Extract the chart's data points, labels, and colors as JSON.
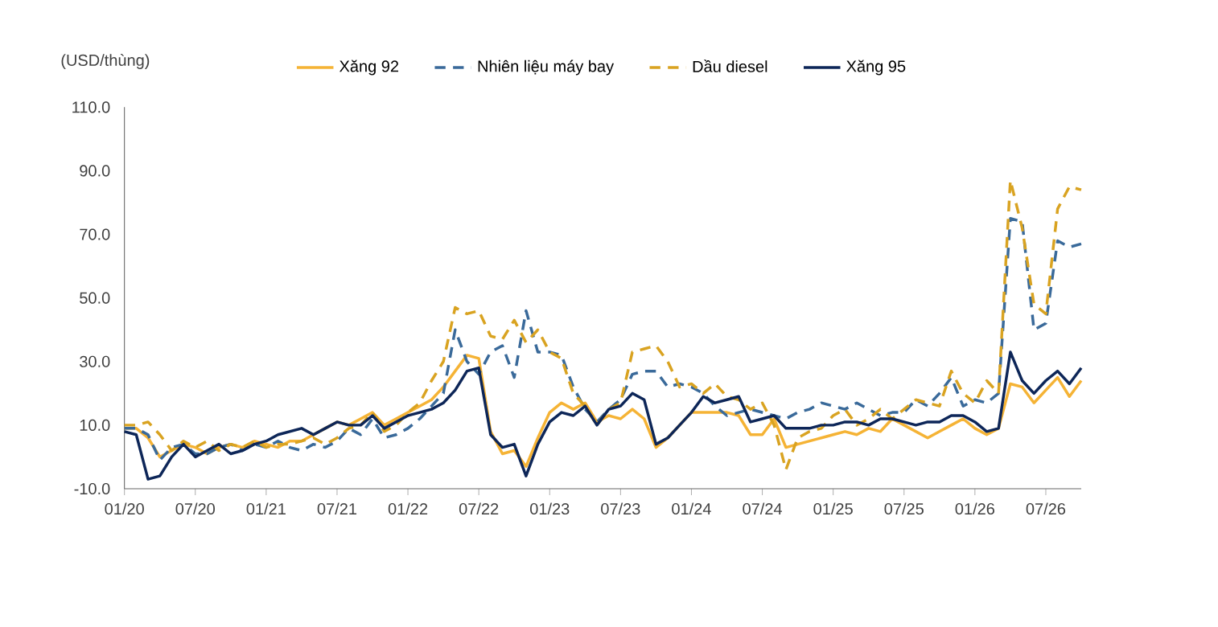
{
  "chart_data": {
    "type": "line",
    "ylabel": "(USD/thùng)",
    "x": [
      "2020-01",
      "2020-02",
      "2020-03",
      "2020-04",
      "2020-05",
      "2020-06",
      "2020-07",
      "2020-08",
      "2020-09",
      "2020-10",
      "2020-11",
      "2020-12",
      "2021-01",
      "2021-02",
      "2021-03",
      "2021-04",
      "2021-05",
      "2021-06",
      "2021-07",
      "2021-08",
      "2021-09",
      "2021-10",
      "2021-11",
      "2021-12",
      "2022-01",
      "2022-02",
      "2022-03",
      "2022-04",
      "2022-05",
      "2022-06",
      "2022-07",
      "2022-08",
      "2022-09",
      "2022-10",
      "2022-11",
      "2022-12",
      "2023-01",
      "2023-02",
      "2023-03",
      "2023-04",
      "2023-05",
      "2023-06",
      "2023-07",
      "2023-08",
      "2023-09",
      "2023-10",
      "2023-11",
      "2023-12",
      "2024-01",
      "2024-02",
      "2024-03",
      "2024-04",
      "2024-05",
      "2024-06",
      "2024-07",
      "2024-08",
      "2024-09",
      "2024-10",
      "2024-11",
      "2024-12",
      "2025-01",
      "2025-02",
      "2025-03",
      "2025-04",
      "2025-05",
      "2025-06",
      "2025-07",
      "2025-08",
      "2025-09",
      "2025-10",
      "2025-11",
      "2025-12",
      "2026-01",
      "2026-02",
      "2026-03",
      "2026-04",
      "2026-05",
      "2026-06",
      "2026-07",
      "2026-08",
      "2026-09",
      "2026-10"
    ],
    "series": [
      {
        "name": "Xăng 92",
        "color": "#f5b335",
        "line_style": "solid",
        "values": [
          9,
          9,
          6,
          0,
          2,
          4,
          3,
          1,
          3,
          4,
          3,
          5,
          4,
          3,
          5,
          5,
          7,
          9,
          11,
          10,
          12,
          14,
          10,
          12,
          14,
          16,
          18,
          22,
          27,
          32,
          31,
          8,
          1,
          2,
          -3,
          6,
          14,
          17,
          15,
          17,
          11,
          13,
          12,
          15,
          12,
          3,
          6,
          10,
          14,
          14,
          14,
          14,
          13,
          7,
          7,
          12,
          3,
          4,
          5,
          6,
          7,
          8,
          7,
          9,
          8,
          12,
          10,
          8,
          6,
          8,
          10,
          12,
          9,
          7,
          9,
          23,
          22,
          17,
          21,
          25,
          19,
          24
        ]
      },
      {
        "name": "Nhiên liệu máy bay",
        "color": "#3a6a9a",
        "line_style": "dashed",
        "values": [
          9,
          9,
          7,
          -1,
          3,
          4,
          1,
          1,
          3,
          4,
          2,
          4,
          3,
          5,
          3,
          2,
          4,
          3,
          5,
          9,
          7,
          12,
          6,
          7,
          9,
          12,
          16,
          20,
          40,
          30,
          26,
          33,
          35,
          25,
          46,
          33,
          33,
          32,
          22,
          15,
          11,
          15,
          18,
          26,
          27,
          27,
          22,
          23,
          22,
          20,
          16,
          13,
          14,
          15,
          14,
          13,
          12,
          14,
          15,
          17,
          16,
          15,
          17,
          15,
          13,
          14,
          14,
          18,
          16,
          20,
          25,
          16,
          18,
          17,
          20,
          75,
          74,
          40,
          42,
          68,
          66,
          67
        ]
      },
      {
        "name": "Dầu diesel",
        "color": "#d9a321",
        "line_style": "dashed",
        "values": [
          10,
          10,
          11,
          7,
          2,
          5,
          3,
          5,
          2,
          4,
          3,
          5,
          3,
          4,
          4,
          5,
          6,
          4,
          6,
          9,
          10,
          14,
          8,
          10,
          14,
          17,
          24,
          30,
          47,
          45,
          46,
          38,
          37,
          43,
          36,
          40,
          33,
          31,
          20,
          16,
          10,
          15,
          17,
          33,
          34,
          35,
          30,
          22,
          23,
          20,
          23,
          19,
          18,
          15,
          17,
          10,
          -4,
          6,
          8,
          9,
          13,
          15,
          10,
          12,
          15,
          12,
          15,
          18,
          17,
          16,
          27,
          20,
          17,
          24,
          20,
          87,
          72,
          48,
          45,
          78,
          85,
          84
        ]
      },
      {
        "name": "Xăng 95",
        "color": "#0d2658",
        "line_style": "solid",
        "values": [
          8,
          7,
          -7,
          -6,
          0,
          4,
          0,
          2,
          4,
          1,
          2,
          4,
          5,
          7,
          8,
          9,
          7,
          9,
          11,
          10,
          10,
          13,
          9,
          11,
          13,
          14,
          15,
          17,
          21,
          27,
          28,
          7,
          3,
          4,
          -6,
          4,
          11,
          14,
          13,
          16,
          10,
          15,
          16,
          20,
          18,
          4,
          6,
          10,
          14,
          19,
          17,
          18,
          19,
          11,
          12,
          13,
          9,
          9,
          9,
          10,
          10,
          11,
          11,
          10,
          12,
          12,
          11,
          10,
          11,
          11,
          13,
          13,
          11,
          8,
          9,
          33,
          24,
          20,
          24,
          27,
          23,
          28
        ]
      }
    ],
    "xlim": [
      "2020-01",
      "2026-10"
    ],
    "xticks": [
      {
        "value": "2020-01",
        "label": "01/20"
      },
      {
        "value": "2020-07",
        "label": "07/20"
      },
      {
        "value": "2021-01",
        "label": "01/21"
      },
      {
        "value": "2021-07",
        "label": "07/21"
      },
      {
        "value": "2022-01",
        "label": "01/22"
      },
      {
        "value": "2022-07",
        "label": "07/22"
      },
      {
        "value": "2023-01",
        "label": "01/23"
      },
      {
        "value": "2023-07",
        "label": "07/23"
      },
      {
        "value": "2024-01",
        "label": "01/24"
      },
      {
        "value": "2024-07",
        "label": "07/24"
      },
      {
        "value": "2025-01",
        "label": "01/25"
      },
      {
        "value": "2025-07",
        "label": "07/25"
      },
      {
        "value": "2026-01",
        "label": "01/26"
      },
      {
        "value": "2026-07",
        "label": "07/26"
      }
    ],
    "ylim": [
      -10,
      110
    ],
    "yticks": [
      {
        "value": -10,
        "label": "-10.0"
      },
      {
        "value": 10,
        "label": "10.0"
      },
      {
        "value": 30,
        "label": "30.0"
      },
      {
        "value": 50,
        "label": "50.0"
      },
      {
        "value": 70,
        "label": "70.0"
      },
      {
        "value": 90,
        "label": "90.0"
      },
      {
        "value": 110,
        "label": "110.0"
      }
    ],
    "grid": false,
    "legend": "top",
    "marker": "none"
  }
}
